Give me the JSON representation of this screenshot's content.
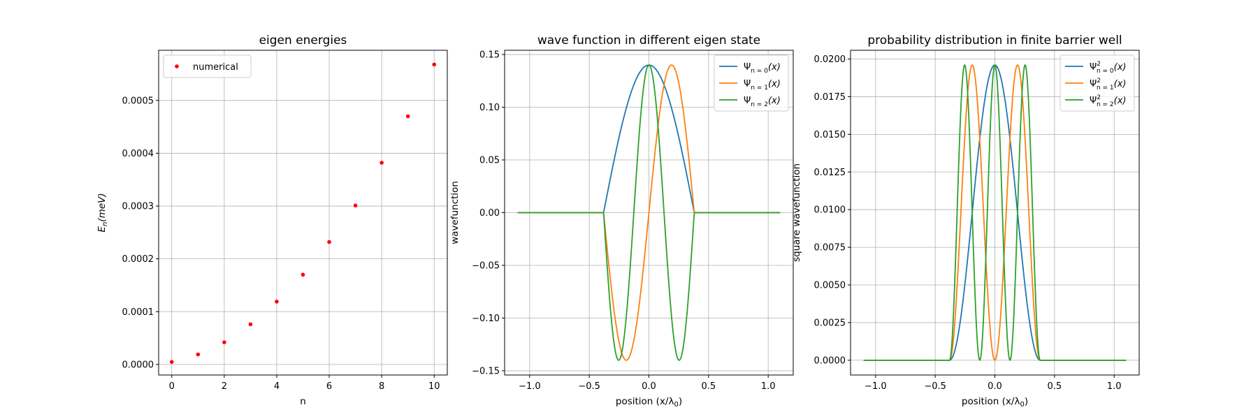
{
  "chart_data": [
    {
      "type": "scatter",
      "title": "eigen energies",
      "xlabel": "n",
      "ylabel_base": "E",
      "ylabel_sub": "n",
      "ylabel_unit": "(meV)",
      "xlim": [
        -0.5,
        10.5
      ],
      "ylim": [
        -2e-05,
        0.000595
      ],
      "xticks": [
        0,
        2,
        4,
        6,
        8,
        10
      ],
      "xtick_labels": [
        "0",
        "2",
        "4",
        "6",
        "8",
        "10"
      ],
      "yticks": [
        0,
        0.0001,
        0.0002,
        0.0003,
        0.0004,
        0.0005
      ],
      "ytick_labels": [
        "0.0000",
        "0.0001",
        "0.0002",
        "0.0003",
        "0.0004",
        "0.0005"
      ],
      "grid": true,
      "legend_loc": "upper-left",
      "series": [
        {
          "name": "numerical",
          "color": "#ff0000",
          "marker": "point",
          "x": [
            0,
            1,
            2,
            3,
            4,
            5,
            6,
            7,
            8,
            9,
            10
          ],
          "y": [
            4.7e-06,
            1.9e-05,
            4.2e-05,
            7.6e-05,
            0.000119,
            0.00017,
            0.000232,
            0.000301,
            0.000382,
            0.00047,
            0.000568
          ]
        }
      ]
    },
    {
      "type": "line",
      "title": "wave function in different eigen state",
      "xlabel": "position (x/λ",
      "xlabel_sub": "0",
      "xlabel_close": ")",
      "ylabel": "wavefunction",
      "xlim": [
        -1.21,
        1.21
      ],
      "ylim": [
        -0.154,
        0.154
      ],
      "xticks": [
        -1.0,
        -0.5,
        0.0,
        0.5,
        1.0
      ],
      "xtick_labels": [
        "−1.0",
        "−0.5",
        "0.0",
        "0.5",
        "1.0"
      ],
      "yticks": [
        -0.15,
        -0.1,
        -0.05,
        0,
        0.05,
        0.1,
        0.15
      ],
      "ytick_labels": [
        "−0.15",
        "−0.10",
        "−0.05",
        "0.00",
        "0.05",
        "0.10",
        "0.15"
      ],
      "grid": true,
      "legend_loc": "upper-right",
      "x_range": [
        -1.1,
        1.1
      ],
      "well_half_width": 0.38,
      "amplitude": 0.14,
      "square": false,
      "series": [
        {
          "name": "Ψ",
          "name_sub": "n = 0",
          "name_sup": "",
          "name_tail": "(x)",
          "n": 0,
          "color": "#1f77b4"
        },
        {
          "name": "Ψ",
          "name_sub": "n = 1",
          "name_sup": "",
          "name_tail": "(x)",
          "n": 1,
          "color": "#ff7f0e"
        },
        {
          "name": "Ψ",
          "name_sub": "n = 2",
          "name_sup": "",
          "name_tail": "(x)",
          "n": 2,
          "color": "#2ca02c"
        }
      ]
    },
    {
      "type": "line",
      "title": "probability distribution in finite barrier well",
      "xlabel": "position (x/λ",
      "xlabel_sub": "0",
      "xlabel_close": ")",
      "ylabel": "square wavefunction",
      "xlim": [
        -1.21,
        1.21
      ],
      "ylim": [
        -0.00098,
        0.02058
      ],
      "xticks": [
        -1.0,
        -0.5,
        0.0,
        0.5,
        1.0
      ],
      "xtick_labels": [
        "−1.0",
        "−0.5",
        "0.0",
        "0.5",
        "1.0"
      ],
      "yticks": [
        0,
        0.0025,
        0.005,
        0.0075,
        0.01,
        0.0125,
        0.015,
        0.0175,
        0.02
      ],
      "ytick_labels": [
        "0.0000",
        "0.0025",
        "0.0050",
        "0.0075",
        "0.0100",
        "0.0125",
        "0.0150",
        "0.0175",
        "0.0200"
      ],
      "grid": true,
      "legend_loc": "upper-right",
      "x_range": [
        -1.1,
        1.1
      ],
      "well_half_width": 0.38,
      "amplitude": 0.14,
      "square": true,
      "series": [
        {
          "name": "Ψ",
          "name_sub": "n = 0",
          "name_sup": "2",
          "name_tail": "(x)",
          "n": 0,
          "color": "#1f77b4"
        },
        {
          "name": "Ψ",
          "name_sub": "n = 1",
          "name_sup": "2",
          "name_tail": "(x)",
          "n": 1,
          "color": "#ff7f0e"
        },
        {
          "name": "Ψ",
          "name_sub": "n = 2",
          "name_sup": "2",
          "name_tail": "(x)",
          "n": 2,
          "color": "#2ca02c"
        }
      ]
    }
  ]
}
